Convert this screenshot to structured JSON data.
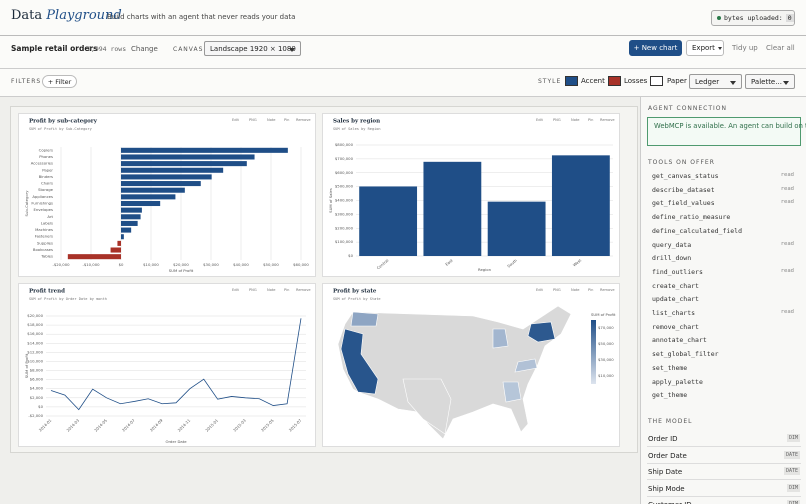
{
  "header": {
    "title_plain": "Data",
    "title_accent": "Playground",
    "tagline": "Build charts with an agent that never reads your data",
    "bytes_label": "bytes uploaded:",
    "bytes_value": "0"
  },
  "toolbar": {
    "dataset_name": "Sample retail orders",
    "rows": "9,994 rows",
    "change": "Change",
    "canvas_label": "CANVAS",
    "canvas_size": "Landscape 1920 × 1080",
    "new_chart": "+ New chart",
    "export": "Export",
    "tidy_up": "Tidy up",
    "clear_all": "Clear all"
  },
  "filters": {
    "label": "FILTERS",
    "add": "+ Filter"
  },
  "style": {
    "label": "STYLE",
    "accent": "Accent",
    "accent_color": "#1f4e87",
    "losses": "Losses",
    "losses_color": "#a83228",
    "paper": "Paper",
    "paper_color": "#ffffff",
    "theme": "Ledger",
    "palette": "Palette..."
  },
  "chart_actions": [
    "Edit",
    "PNG",
    "Note",
    "Pin",
    "Remove"
  ],
  "chart_data": [
    {
      "type": "hbar",
      "title": "Profit by sub-category",
      "subtitle": "SUM of Profit by Sub-Category",
      "x_label": "SUM of Profit",
      "y_label": "Sub-Category",
      "categories": [
        "Copiers",
        "Phones",
        "Accessories",
        "Paper",
        "Binders",
        "Chairs",
        "Storage",
        "Appliances",
        "Furnishings",
        "Envelopes",
        "Art",
        "Labels",
        "Machines",
        "Fasteners",
        "Supplies",
        "Bookcases",
        "Tables"
      ],
      "values": [
        55618,
        44516,
        41937,
        34054,
        30222,
        26590,
        21279,
        18138,
        13059,
        6964,
        6528,
        5546,
        3385,
        950,
        -1189,
        -3473,
        -17725
      ],
      "color": "#1f4e87",
      "negative_color": "#a83228",
      "xlim": [
        -20000,
        60000
      ],
      "xticks": [
        {
          "value": -20000,
          "label": "-$20,000"
        },
        {
          "value": -10000,
          "label": "-$10,000"
        },
        {
          "value": 0,
          "label": "$0"
        },
        {
          "value": 10000,
          "label": "$10,000"
        },
        {
          "value": 20000,
          "label": "$20,000"
        },
        {
          "value": 30000,
          "label": "$30,000"
        },
        {
          "value": 40000,
          "label": "$40,000"
        },
        {
          "value": 50000,
          "label": "$50,000"
        },
        {
          "value": 60000,
          "label": "$60,000"
        }
      ],
      "grid": true
    },
    {
      "type": "bar",
      "title": "Sales by region",
      "subtitle": "SUM of Sales by Region",
      "x_label": "Region",
      "y_label": "SUM of Sales",
      "categories": [
        "Central",
        "East",
        "South",
        "West"
      ],
      "values": [
        501240,
        678781,
        391722,
        725458
      ],
      "color": "#1f4e87",
      "ylim": [
        0,
        800000
      ],
      "yticks": [
        {
          "value": 0,
          "label": "$0"
        },
        {
          "value": 100000,
          "label": "$100,000"
        },
        {
          "value": 200000,
          "label": "$200,000"
        },
        {
          "value": 300000,
          "label": "$300,000"
        },
        {
          "value": 400000,
          "label": "$400,000"
        },
        {
          "value": 500000,
          "label": "$500,000"
        },
        {
          "value": 600000,
          "label": "$600,000"
        },
        {
          "value": 700000,
          "label": "$700,000"
        },
        {
          "value": 800000,
          "label": "$800,000"
        }
      ],
      "grid": true
    },
    {
      "type": "line",
      "title": "Profit trend",
      "subtitle": "SUM of Profit by Order Date by month",
      "x_label": "Order Date",
      "y_label": "SUM of Profit",
      "categories": [
        "2014-01",
        null,
        "2014-03",
        null,
        "2014-05",
        null,
        "2014-07",
        null,
        "2014-09",
        null,
        "2014-11",
        null,
        "2015-01",
        null,
        "2015-03",
        null,
        "2015-05",
        null,
        "2015-07"
      ],
      "values": [
        3600,
        2600,
        -600,
        3900,
        2000,
        700,
        1200,
        1800,
        700,
        900,
        4000,
        6100,
        1700,
        2300,
        2000,
        1800,
        300,
        700,
        19500
      ],
      "color": "#1f4e87",
      "ylim": [
        -2000,
        20000
      ],
      "yticks": [
        {
          "value": -2000,
          "label": "-$2,000"
        },
        {
          "value": 0,
          "label": "$0"
        },
        {
          "value": 2000,
          "label": "$2,000"
        },
        {
          "value": 4000,
          "label": "$4,000"
        },
        {
          "value": 6000,
          "label": "$6,000"
        },
        {
          "value": 8000,
          "label": "$8,000"
        },
        {
          "value": 10000,
          "label": "$10,000"
        },
        {
          "value": 12000,
          "label": "$12,000"
        },
        {
          "value": 14000,
          "label": "$14,000"
        },
        {
          "value": 16000,
          "label": "$16,000"
        },
        {
          "value": 18000,
          "label": "$18,000"
        },
        {
          "value": 20000,
          "label": "$20,000"
        }
      ],
      "grid": true
    },
    {
      "type": "map",
      "title": "Profit by state",
      "subtitle": "SUM of Profit by State",
      "legend_title": "SUM of Profit",
      "regions": [
        "California",
        "Washington",
        "New York",
        "Michigan",
        "Virginia",
        "Georgia",
        "Texas"
      ],
      "values": [
        76381,
        33403,
        74039,
        24463,
        18598,
        16250,
        -25729
      ],
      "color": "#1f4e87",
      "empty_color": "#d9d9d9",
      "clim": [
        0,
        80000
      ],
      "cticks": [
        {
          "value": 70000,
          "label": "$70,000"
        },
        {
          "value": 50000,
          "label": "$50,000"
        },
        {
          "value": 30000,
          "label": "$30,000"
        },
        {
          "value": 10000,
          "label": "$10,000"
        }
      ]
    }
  ],
  "sidebar": {
    "agent_heading": "AGENT CONNECTION",
    "agent_message": "WebMCP is available. An agent can build on this dashboard alongside you.",
    "tools_heading": "TOOLS ON OFFER",
    "tools": [
      {
        "name": "get_canvas_status",
        "tag": "read"
      },
      {
        "name": "describe_dataset",
        "tag": "read"
      },
      {
        "name": "get_field_values",
        "tag": "read"
      },
      {
        "name": "define_ratio_measure"
      },
      {
        "name": "define_calculated_field"
      },
      {
        "name": "query_data",
        "tag": "read"
      },
      {
        "name": "drill_down"
      },
      {
        "name": "find_outliers",
        "tag": "read"
      },
      {
        "name": "create_chart"
      },
      {
        "name": "update_chart"
      },
      {
        "name": "list_charts",
        "tag": "read"
      },
      {
        "name": "remove_chart"
      },
      {
        "name": "annotate_chart"
      },
      {
        "name": "set_global_filter"
      },
      {
        "name": "set_theme"
      },
      {
        "name": "apply_palette"
      },
      {
        "name": "get_theme"
      }
    ],
    "model_heading": "THE MODEL",
    "fields": [
      {
        "name": "Order ID",
        "type": "DIM"
      },
      {
        "name": "Order Date",
        "type": "DATE"
      },
      {
        "name": "Ship Date",
        "type": "DATE"
      },
      {
        "name": "Ship Mode",
        "type": "DIM"
      },
      {
        "name": "Customer ID",
        "type": "DIM"
      }
    ]
  }
}
